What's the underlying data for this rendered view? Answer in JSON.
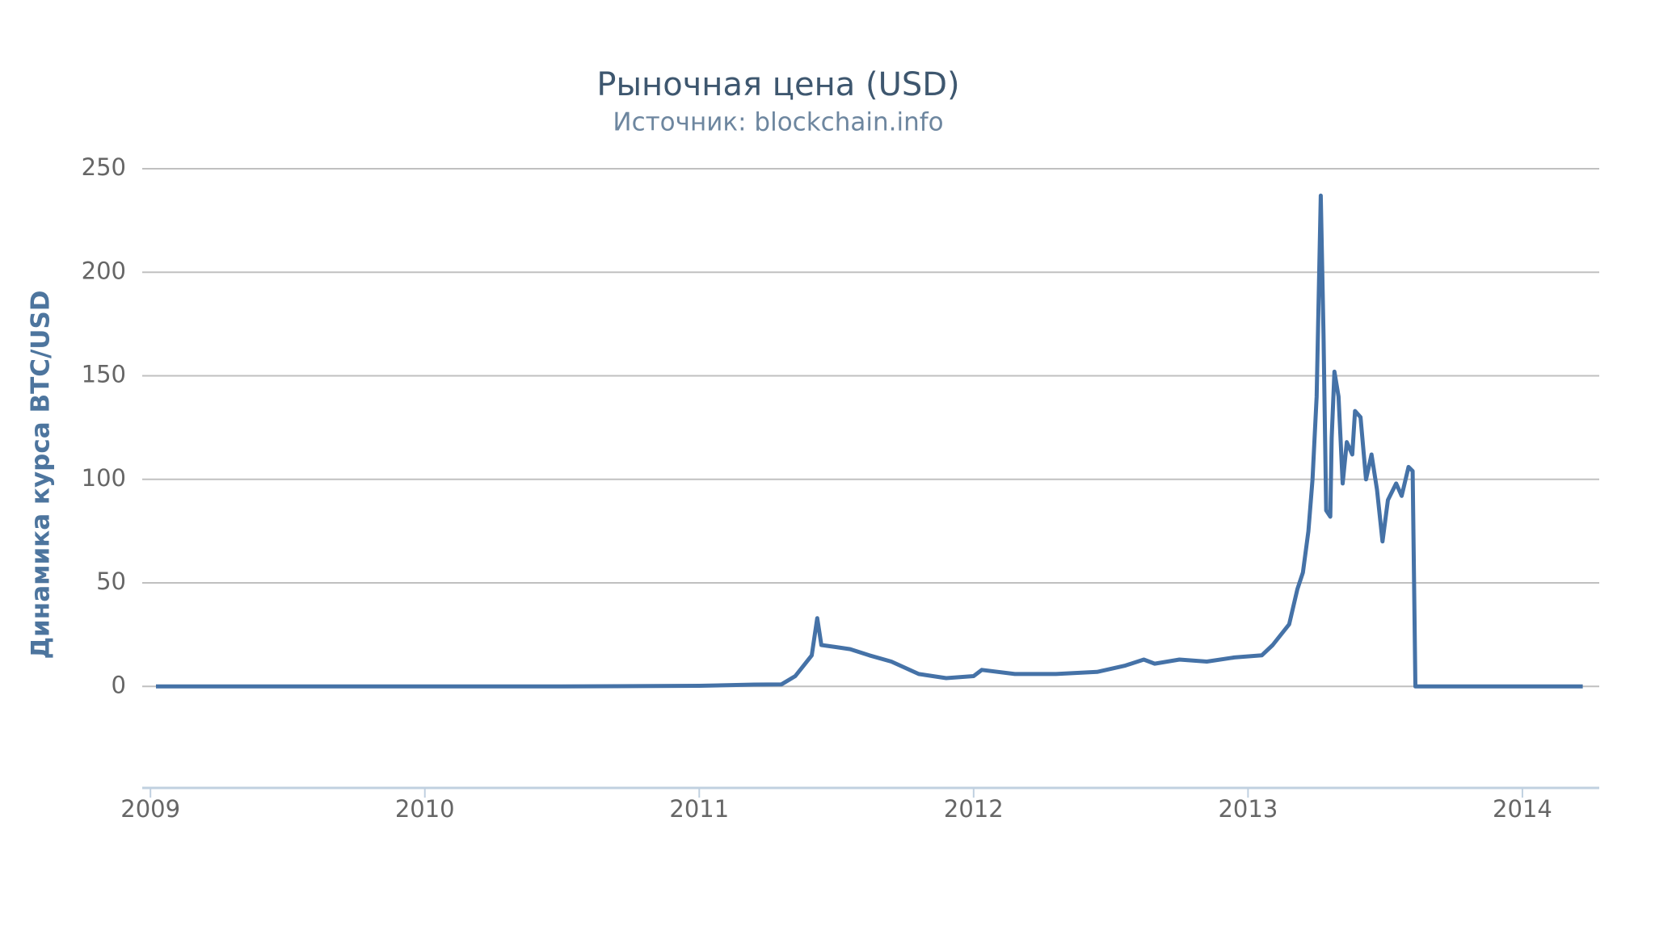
{
  "chart_data": {
    "type": "line",
    "title": "Рыночная цена (USD)",
    "subtitle": "Источник: blockchain.info",
    "y_label": "Динамика курса BTC/USD",
    "x": [
      2009.02,
      2010.0,
      2010.5,
      2011.0,
      2011.2,
      2011.3,
      2011.35,
      2011.38,
      2011.41,
      2011.43,
      2011.445,
      2011.5,
      2011.55,
      2011.62,
      2011.7,
      2011.8,
      2011.9,
      2012.0,
      2012.03,
      2012.15,
      2012.3,
      2012.45,
      2012.55,
      2012.62,
      2012.66,
      2012.75,
      2012.85,
      2012.95,
      2013.05,
      2013.09,
      2013.15,
      2013.18,
      2013.2,
      2013.22,
      2013.235,
      2013.25,
      2013.265,
      2013.275,
      2013.285,
      2013.3,
      2013.305,
      2013.315,
      2013.33,
      2013.345,
      2013.36,
      2013.38,
      2013.39,
      2013.41,
      2013.43,
      2013.45,
      2013.47,
      2013.49,
      2013.51,
      2013.54,
      2013.56,
      2013.585,
      2013.6,
      2013.61,
      2013.8,
      2014.0,
      2014.22
    ],
    "series": [
      {
        "name": "Рыночная цена",
        "color": "#4572a7",
        "values": [
          0,
          0,
          0,
          0.3,
          0.9,
          1,
          5,
          10,
          15,
          33,
          20,
          19,
          18,
          15,
          12,
          6,
          4,
          5,
          8,
          6,
          6,
          7,
          10,
          13,
          11,
          13,
          12,
          14,
          15,
          20,
          30,
          47,
          55,
          75,
          100,
          140,
          237,
          170,
          85,
          82,
          120,
          152,
          140,
          98,
          118,
          112,
          133,
          130,
          100,
          112,
          95,
          70,
          90,
          98,
          92,
          106,
          104,
          0,
          0,
          0,
          0
        ]
      }
    ],
    "xlim": [
      2008.97,
      2014.28
    ],
    "xticks": [
      2009,
      2010,
      2011,
      2012,
      2013,
      2014
    ],
    "ylim": [
      -49,
      250
    ],
    "yticks": [
      0,
      50,
      100,
      150,
      200,
      250
    ],
    "grid": true
  }
}
